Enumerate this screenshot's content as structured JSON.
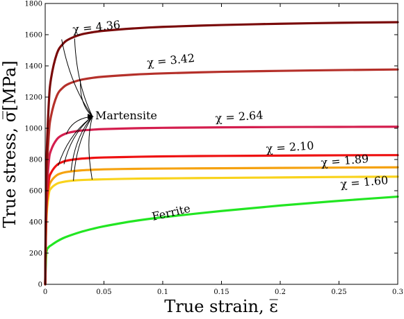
{
  "chart_data": {
    "type": "line",
    "xlabel": "True strain, ε̅",
    "ylabel": "True stress, σ̅[MPa]",
    "xlim": [
      0,
      0.3
    ],
    "ylim": [
      0,
      1800
    ],
    "x_ticks": [
      "0",
      "0.05",
      "0.1",
      "0.15",
      "0.2",
      "0.25",
      "0.3"
    ],
    "y_ticks": [
      "0",
      "200",
      "400",
      "600",
      "800",
      "1000",
      "1200",
      "1400",
      "1600",
      "1800"
    ],
    "grid": false,
    "x": [
      0,
      0.001,
      0.003,
      0.005,
      0.01,
      0.015,
      0.02,
      0.03,
      0.04,
      0.05,
      0.075,
      0.1,
      0.15,
      0.2,
      0.25,
      0.3
    ],
    "series": [
      {
        "name": "χ = 4.36",
        "color": "#7a0a0a",
        "values": [
          0,
          750,
          1150,
          1320,
          1480,
          1540,
          1570,
          1600,
          1615,
          1625,
          1640,
          1650,
          1662,
          1670,
          1676,
          1680
        ]
      },
      {
        "name": "χ = 3.42",
        "color": "#b5302a",
        "values": [
          0,
          620,
          950,
          1080,
          1210,
          1260,
          1285,
          1310,
          1323,
          1331,
          1344,
          1352,
          1362,
          1368,
          1373,
          1377
        ]
      },
      {
        "name": "χ = 2.64",
        "color": "#d41e4e",
        "values": [
          0,
          520,
          780,
          860,
          930,
          958,
          972,
          985,
          991,
          995,
          1000,
          1003,
          1006,
          1008,
          1009,
          1010
        ]
      },
      {
        "name": "χ = 2.10",
        "color": "#ee1111",
        "values": [
          0,
          470,
          660,
          715,
          765,
          785,
          795,
          805,
          810,
          813,
          817,
          820,
          823,
          825,
          827,
          828
        ]
      },
      {
        "name": "χ = 1.89",
        "color": "#f5a20f",
        "values": [
          0,
          440,
          610,
          660,
          700,
          715,
          722,
          730,
          734,
          737,
          740,
          742,
          744,
          746,
          748,
          750
        ]
      },
      {
        "name": "χ = 1.60",
        "color": "#f9d31c",
        "values": [
          0,
          410,
          575,
          615,
          645,
          656,
          662,
          668,
          671,
          673,
          677,
          679,
          682,
          685,
          688,
          690
        ]
      },
      {
        "name": "Ferrite",
        "color": "#22e622",
        "values": [
          0,
          200,
          238,
          250,
          275,
          295,
          310,
          335,
          355,
          372,
          405,
          430,
          470,
          505,
          535,
          562
        ]
      }
    ],
    "annotations": [
      {
        "text": "χ = 4.36"
      },
      {
        "text": "χ = 3.42"
      },
      {
        "text": "χ = 2.64"
      },
      {
        "text": "χ = 2.10"
      },
      {
        "text": "χ = 1.89"
      },
      {
        "text": "χ = 1.60"
      },
      {
        "text": "Martensite"
      },
      {
        "text": "Ferrite"
      }
    ]
  }
}
